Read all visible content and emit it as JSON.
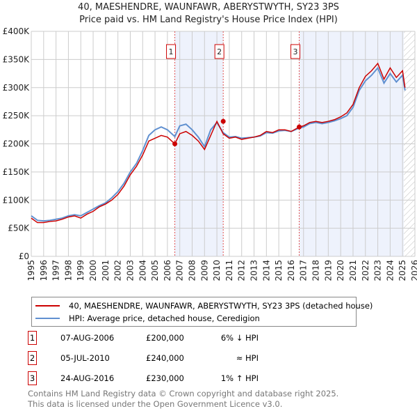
{
  "chart_data": {
    "type": "line",
    "title": "40, MAESHENDRE, WAUNFAWR, ABERYSTWYTH, SY23 3PS",
    "subtitle": "Price paid vs. HM Land Registry's House Price Index (HPI)",
    "xlim": [
      1995,
      2026
    ],
    "ylim": [
      0,
      400000
    ],
    "x_ticks": [
      "1995",
      "1996",
      "1997",
      "1998",
      "1999",
      "2000",
      "2001",
      "2002",
      "2003",
      "2004",
      "2005",
      "2006",
      "2007",
      "2008",
      "2009",
      "2010",
      "2011",
      "2012",
      "2013",
      "2014",
      "2015",
      "2016",
      "2017",
      "2018",
      "2019",
      "2020",
      "2021",
      "2022",
      "2023",
      "2024",
      "2025",
      "2026"
    ],
    "y_ticks": [
      {
        "v": 0,
        "l": "£0"
      },
      {
        "v": 50000,
        "l": "£50K"
      },
      {
        "v": 100000,
        "l": "£100K"
      },
      {
        "v": 150000,
        "l": "£150K"
      },
      {
        "v": 200000,
        "l": "£200K"
      },
      {
        "v": 250000,
        "l": "£250K"
      },
      {
        "v": 300000,
        "l": "£300K"
      },
      {
        "v": 350000,
        "l": "£350K"
      },
      {
        "v": 400000,
        "l": "£400K"
      }
    ],
    "x": [
      1995,
      1995.5,
      1996,
      1996.5,
      1997,
      1997.5,
      1998,
      1998.5,
      1999,
      1999.5,
      2000,
      2000.5,
      2001,
      2001.5,
      2002,
      2002.5,
      2003,
      2003.5,
      2004,
      2004.5,
      2005,
      2005.5,
      2006,
      2006.6,
      2007,
      2007.5,
      2008,
      2008.5,
      2009,
      2009.5,
      2010,
      2010.5,
      2011,
      2011.5,
      2012,
      2012.5,
      2013,
      2013.5,
      2014,
      2014.5,
      2015,
      2015.5,
      2016,
      2016.65,
      2017,
      2017.5,
      2018,
      2018.5,
      2019,
      2019.5,
      2020,
      2020.5,
      2021,
      2021.5,
      2022,
      2022.5,
      2023,
      2023.5,
      2024,
      2024.5,
      2025,
      2025.2
    ],
    "series": [
      {
        "name": "40, MAESHENDRE, WAUNFAWR, ABERYSTWYTH, SY23 3PS (detached house)",
        "color": "#cc0000",
        "values": [
          68000,
          60000,
          60000,
          62000,
          63000,
          66000,
          70000,
          72000,
          68000,
          75000,
          80000,
          88000,
          93000,
          100000,
          110000,
          125000,
          145000,
          160000,
          180000,
          205000,
          210000,
          215000,
          212000,
          200000,
          218000,
          222000,
          215000,
          205000,
          190000,
          215000,
          240000,
          218000,
          210000,
          212000,
          208000,
          210000,
          212000,
          215000,
          222000,
          220000,
          225000,
          225000,
          222000,
          230000,
          232000,
          238000,
          240000,
          238000,
          240000,
          243000,
          248000,
          255000,
          270000,
          300000,
          320000,
          330000,
          343000,
          315000,
          335000,
          318000,
          330000,
          300000
        ]
      },
      {
        "name": "HPI: Average price, detached house, Ceredigion",
        "color": "#6090d0",
        "values": [
          72000,
          64000,
          63000,
          64000,
          66000,
          68000,
          72000,
          74000,
          72000,
          78000,
          84000,
          90000,
          95000,
          104000,
          115000,
          130000,
          150000,
          165000,
          188000,
          215000,
          225000,
          230000,
          225000,
          213000,
          232000,
          235000,
          225000,
          212000,
          195000,
          225000,
          238000,
          220000,
          212000,
          213000,
          210000,
          211000,
          212000,
          214000,
          220000,
          219000,
          223000,
          224000,
          222000,
          228000,
          230000,
          236000,
          238000,
          236000,
          238000,
          241000,
          245000,
          250000,
          265000,
          295000,
          312000,
          322000,
          335000,
          308000,
          325000,
          310000,
          322000,
          295000
        ]
      }
    ],
    "markers": [
      {
        "label": "1",
        "x": 2006.6,
        "y": 200000
      },
      {
        "label": "2",
        "x": 2010.51,
        "y": 240000
      },
      {
        "label": "3",
        "x": 2016.65,
        "y": 230000
      }
    ],
    "shaded": [
      [
        2006.6,
        2010.51
      ],
      [
        2016.65,
        2025.1
      ]
    ],
    "hatched_from": 2025.1
  },
  "legend": {
    "items": [
      "40, MAESHENDRE, WAUNFAWR, ABERYSTWYTH, SY23 3PS (detached house)",
      "HPI: Average price, detached house, Ceredigion"
    ]
  },
  "transactions": [
    {
      "n": "1",
      "date": "07-AUG-2006",
      "price": "£200,000",
      "rel": "6% ↓ HPI"
    },
    {
      "n": "2",
      "date": "05-JUL-2010",
      "price": "£240,000",
      "rel": "≈ HPI"
    },
    {
      "n": "3",
      "date": "24-AUG-2016",
      "price": "£230,000",
      "rel": "1% ↑ HPI"
    }
  ],
  "footer": [
    "Contains HM Land Registry data © Crown copyright and database right 2025.",
    "This data is licensed under the Open Government Licence v3.0."
  ]
}
